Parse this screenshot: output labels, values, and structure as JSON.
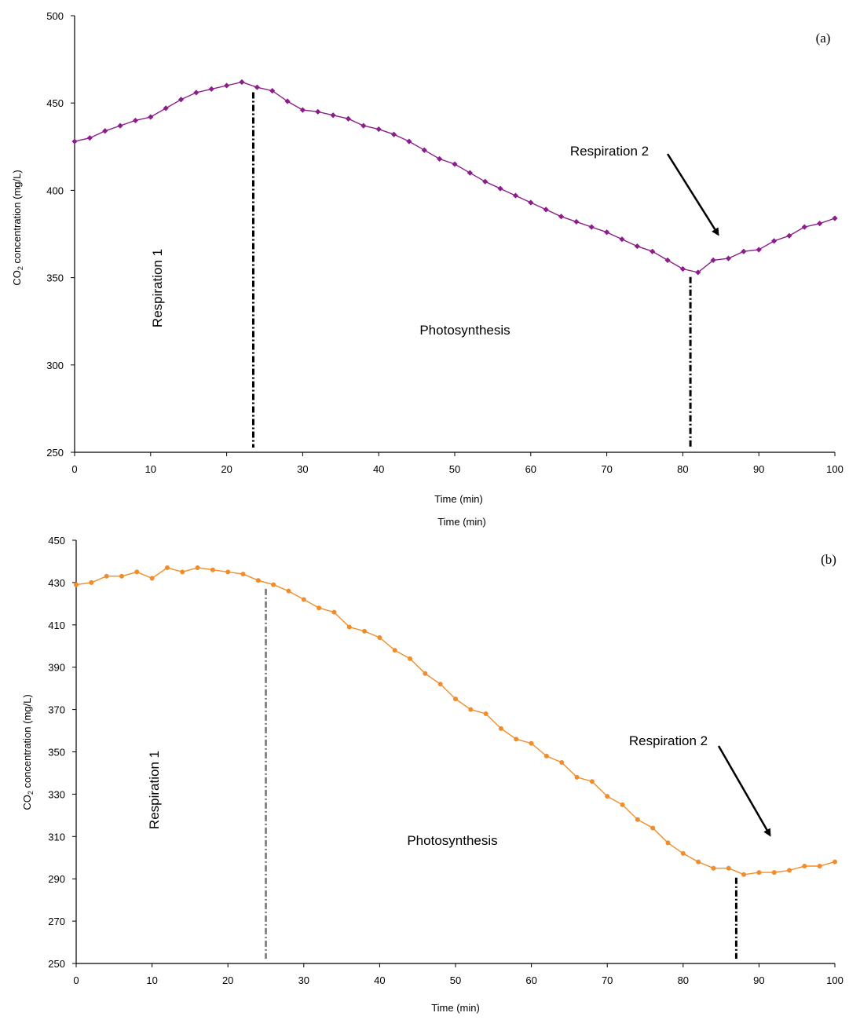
{
  "chart_data": [
    {
      "type": "line",
      "panel_label": "(a)",
      "xlabel": "Time (min)",
      "extra_xlabel": "Time (min)",
      "ylabel_main": "CO",
      "ylabel_sub": "2",
      "ylabel_rest": " concentration (mg/L)",
      "xlim": [
        0,
        100
      ],
      "ylim": [
        250,
        500
      ],
      "xticks": [
        0,
        10,
        20,
        30,
        40,
        50,
        60,
        70,
        80,
        90,
        100
      ],
      "yticks": [
        250,
        300,
        350,
        400,
        450,
        500
      ],
      "grid": false,
      "line_color": "#8B1E8B",
      "series": [
        {
          "x": [
            0,
            2,
            4,
            6,
            8,
            10,
            12,
            14,
            16,
            18,
            20,
            22,
            24,
            26,
            28,
            30,
            32,
            34,
            36,
            38,
            40,
            42,
            44,
            46,
            48,
            50,
            52,
            54,
            56,
            58,
            60,
            62,
            64,
            66,
            68,
            70,
            72,
            74,
            76,
            78,
            80,
            82,
            84,
            86,
            88,
            90,
            92,
            94,
            96,
            98,
            100
          ],
          "values": [
            428,
            430,
            434,
            437,
            440,
            442,
            447,
            452,
            456,
            458,
            460,
            462,
            459,
            457,
            451,
            446,
            445,
            443,
            441,
            437,
            435,
            432,
            428,
            423,
            418,
            415,
            410,
            405,
            401,
            397,
            393,
            389,
            385,
            382,
            379,
            376,
            372,
            368,
            365,
            360,
            355,
            353,
            360,
            361,
            365,
            366,
            371,
            374,
            379,
            381,
            384
          ]
        }
      ],
      "annotations": {
        "region1": "Respiration 1",
        "region2": "Photosynthesis",
        "region3": "Respiration 2"
      },
      "boundaries": [
        23.5,
        81
      ],
      "boundary_color": "#000000"
    },
    {
      "type": "line",
      "panel_label": "(b)",
      "xlabel": "Time (min)",
      "ylabel_main": "CO",
      "ylabel_sub": "2",
      "ylabel_rest": " concentration (mg/L)",
      "xlim": [
        0,
        100
      ],
      "ylim": [
        250,
        450
      ],
      "xticks": [
        0,
        10,
        20,
        30,
        40,
        50,
        60,
        70,
        80,
        90,
        100
      ],
      "yticks": [
        250,
        270,
        290,
        310,
        330,
        350,
        370,
        390,
        410,
        430,
        450
      ],
      "grid": false,
      "line_color": "#F28C28",
      "series": [
        {
          "x": [
            0,
            2,
            4,
            6,
            8,
            10,
            12,
            14,
            16,
            18,
            20,
            22,
            24,
            26,
            28,
            30,
            32,
            34,
            36,
            38,
            40,
            42,
            44,
            46,
            48,
            50,
            52,
            54,
            56,
            58,
            60,
            62,
            64,
            66,
            68,
            70,
            72,
            74,
            76,
            78,
            80,
            82,
            84,
            86,
            88,
            90,
            92,
            94,
            96,
            98,
            100
          ],
          "values": [
            429,
            430,
            433,
            433,
            435,
            432,
            437,
            435,
            437,
            436,
            435,
            434,
            431,
            429,
            426,
            422,
            418,
            416,
            409,
            407,
            404,
            398,
            394,
            387,
            382,
            375,
            370,
            368,
            361,
            356,
            354,
            348,
            345,
            338,
            336,
            329,
            325,
            318,
            314,
            307,
            302,
            298,
            295,
            295,
            292,
            293,
            293,
            294,
            296,
            296,
            298
          ]
        }
      ],
      "annotations": {
        "region1": "Respiration 1",
        "region2": "Photosynthesis",
        "region3": "Respiration 2"
      },
      "boundaries": [
        25,
        87
      ],
      "boundary_color": "#888888"
    }
  ]
}
